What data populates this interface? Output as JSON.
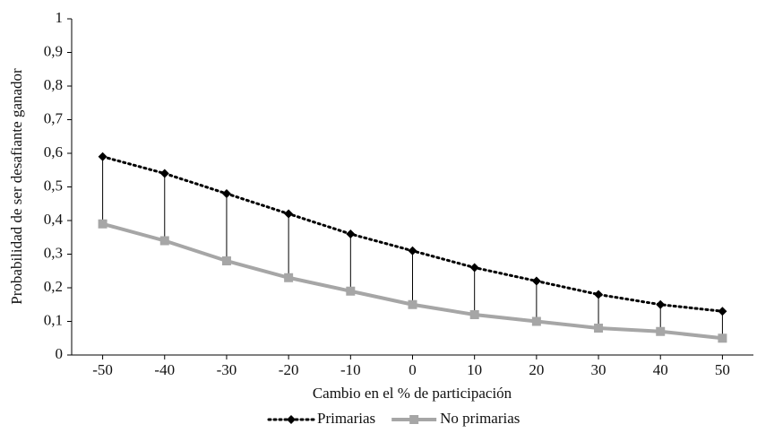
{
  "chart_data": {
    "type": "line",
    "x_label": "Cambio en el % de participación",
    "y_label": "Probabilidad de ser desafiante ganador",
    "x": [
      -50,
      -40,
      -30,
      -20,
      -10,
      0,
      10,
      20,
      30,
      40,
      50
    ],
    "xlim": [
      -55,
      55
    ],
    "xticks": [
      -50,
      -40,
      -30,
      -20,
      -10,
      0,
      10,
      20,
      30,
      40,
      50
    ],
    "ylim": [
      0,
      1
    ],
    "yticks": [
      0,
      {
        "value": 0.1,
        "label": "0,1"
      },
      {
        "value": 0.2,
        "label": "0,2"
      },
      {
        "value": 0.3,
        "label": "0,3"
      },
      {
        "value": 0.4,
        "label": "0,4"
      },
      {
        "value": 0.5,
        "label": "0,5"
      },
      {
        "value": 0.6,
        "label": "0,6"
      },
      {
        "value": 0.7,
        "label": "0,7"
      },
      {
        "value": 0.8,
        "label": "0,8"
      },
      {
        "value": 0.9,
        "label": "0,9"
      },
      1
    ],
    "grid": false,
    "legend": "bottom",
    "series": [
      {
        "name": "Primarias",
        "color": "#000000",
        "style": "dotted",
        "marker": "diamond",
        "values": [
          0.59,
          0.54,
          0.48,
          0.42,
          0.36,
          0.31,
          0.26,
          0.22,
          0.18,
          0.15,
          0.13
        ]
      },
      {
        "name": "No primarias",
        "color": "#a6a6a6",
        "style": "solid",
        "marker": "square",
        "values": [
          0.39,
          0.34,
          0.28,
          0.23,
          0.19,
          0.15,
          0.12,
          0.1,
          0.08,
          0.07,
          0.05
        ]
      }
    ]
  }
}
